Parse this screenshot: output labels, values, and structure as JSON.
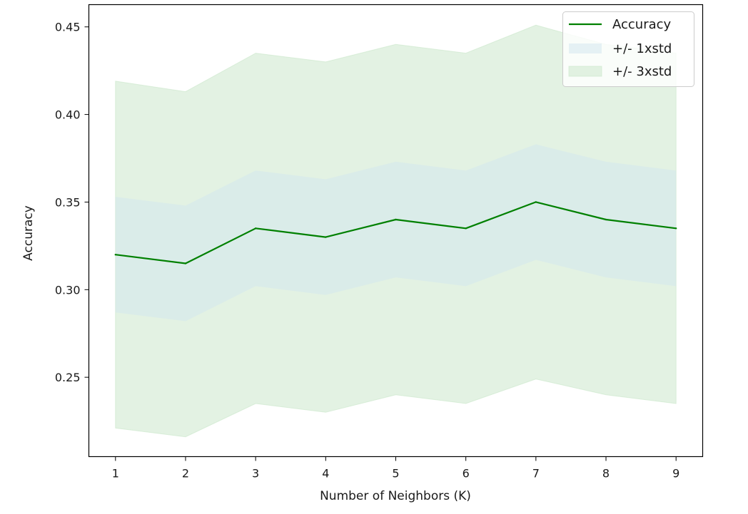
{
  "chart_data": {
    "type": "line",
    "x": [
      1,
      2,
      3,
      4,
      5,
      6,
      7,
      8,
      9
    ],
    "xlabel": "Number of Neighbors (K)",
    "ylabel": "Accuracy",
    "xlim": [
      0.62,
      9.38
    ],
    "ylim": [
      0.2047,
      0.4627
    ],
    "xticks": [
      1,
      2,
      3,
      4,
      5,
      6,
      7,
      8,
      9
    ],
    "yticks": [
      0.25,
      0.3,
      0.35,
      0.4,
      0.45
    ],
    "ytick_labels": [
      "0.25",
      "0.30",
      "0.35",
      "0.40",
      "0.45"
    ],
    "grid": false,
    "legend_position": "top-right",
    "series": [
      {
        "name": "Accuracy",
        "kind": "line",
        "color": "#008000",
        "values": [
          0.32,
          0.315,
          0.335,
          0.33,
          0.34,
          0.335,
          0.35,
          0.34,
          0.335
        ]
      },
      {
        "name": "+/- 1xstd",
        "kind": "band",
        "color": "#d3e7ef",
        "lower": [
          0.287,
          0.282,
          0.302,
          0.297,
          0.307,
          0.302,
          0.317,
          0.307,
          0.302
        ],
        "upper": [
          0.353,
          0.348,
          0.368,
          0.363,
          0.373,
          0.368,
          0.383,
          0.373,
          0.368
        ]
      },
      {
        "name": "+/- 3xstd",
        "kind": "band",
        "color": "#c8e6c8",
        "lower": [
          0.221,
          0.216,
          0.235,
          0.23,
          0.24,
          0.235,
          0.249,
          0.24,
          0.235
        ],
        "upper": [
          0.419,
          0.413,
          0.435,
          0.43,
          0.44,
          0.435,
          0.451,
          0.44,
          0.435
        ]
      }
    ]
  }
}
